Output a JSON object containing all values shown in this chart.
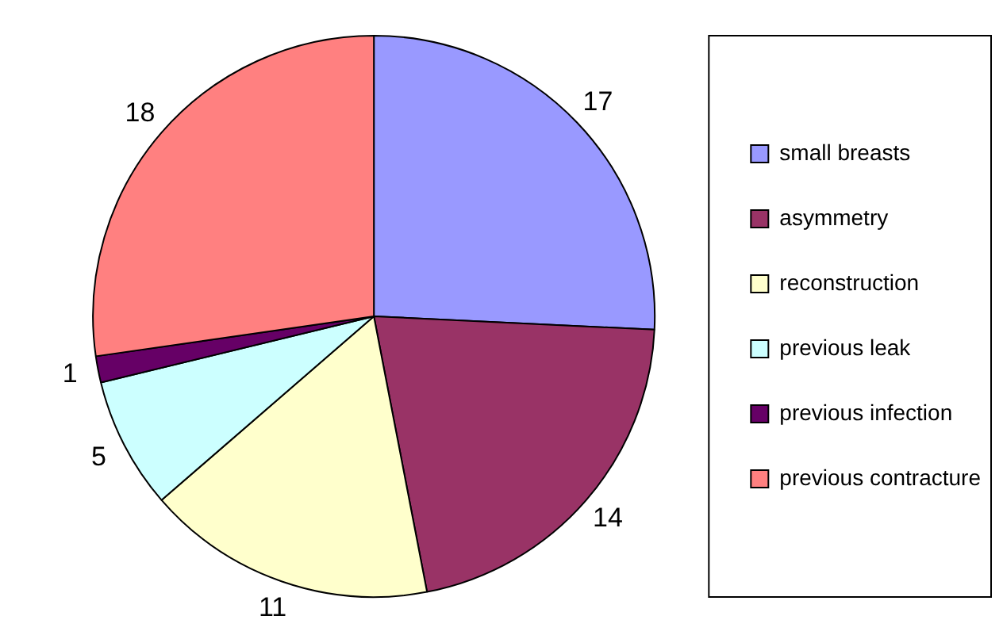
{
  "chart_data": {
    "type": "pie",
    "categories": [
      "small breasts",
      "asymmetry",
      "reconstruction",
      "previous leak",
      "previous infection",
      "previous contracture"
    ],
    "values": [
      17,
      14,
      11,
      5,
      1,
      18
    ],
    "colors": [
      "#9999ff",
      "#993366",
      "#ffffcc",
      "#ccffff",
      "#660066",
      "#ff8080"
    ],
    "data_labels": true,
    "legend": "right"
  }
}
